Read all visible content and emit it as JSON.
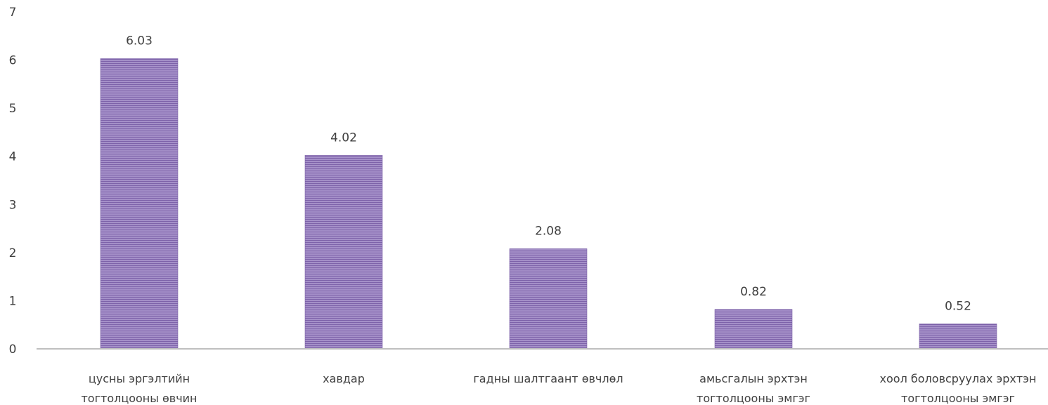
{
  "chart_data": {
    "type": "bar",
    "categories": [
      [
        "цусны эргэлтийн",
        "тогтолцооны өвчин"
      ],
      [
        "хавдар"
      ],
      [
        "гадны шалтгаант өвчлөл"
      ],
      [
        "амьсгалын эрхтэн",
        "тогтолцооны эмгэг"
      ],
      [
        "хоол боловсруулах эрхтэн",
        "тогтолцооны эмгэг"
      ]
    ],
    "values": [
      6.03,
      4.02,
      2.08,
      0.82,
      0.52
    ],
    "data_labels": [
      "6.03",
      "4.02",
      "2.08",
      "0.82",
      "0.52"
    ],
    "ylim": [
      0,
      7
    ],
    "yticks": [
      "0",
      "1",
      "2",
      "3",
      "4",
      "5",
      "6",
      "7"
    ],
    "title": "",
    "xlabel": "",
    "ylabel": "",
    "grid": false,
    "legend": "none",
    "colors": {
      "bar_fill": "#a48fc8",
      "bar_stripe": "#7d62a9",
      "axis": "#bfbfbf",
      "text": "#404040"
    }
  }
}
